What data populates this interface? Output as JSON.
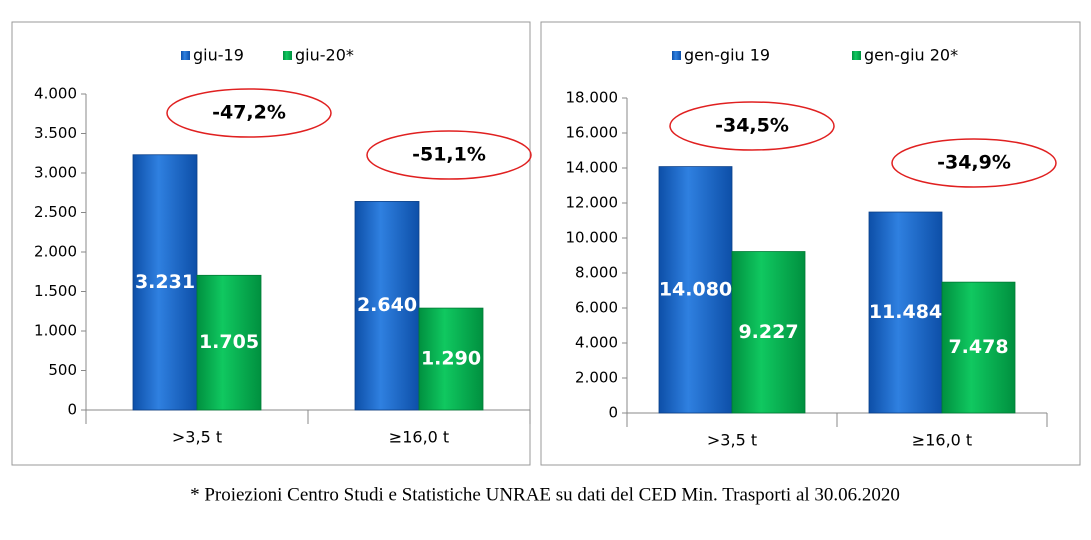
{
  "chart_data": [
    {
      "type": "bar",
      "categories": [
        ">3,5 t",
        "≥16,0 t"
      ],
      "series": [
        {
          "name": "giu-19",
          "color": "#1f6fd0",
          "values": [
            3231,
            2640
          ],
          "value_labels": [
            "3.231",
            "2.640"
          ]
        },
        {
          "name": "giu-20*",
          "color": "#00b050",
          "values": [
            1705,
            1290
          ],
          "value_labels": [
            "1.705",
            "1.290"
          ]
        }
      ],
      "annotations": [
        "-47,2%",
        "-51,1%"
      ],
      "ylim": [
        0,
        4000
      ],
      "yticks": [
        0,
        500,
        {
          "value": 1000,
          "label": "1.000"
        },
        {
          "value": 1500,
          "label": "1.500"
        },
        {
          "value": 2000,
          "label": "2.000"
        },
        {
          "value": 2500,
          "label": "2.500"
        },
        {
          "value": 3000,
          "label": "3.000"
        },
        {
          "value": 3500,
          "label": "3.500"
        },
        {
          "value": 4000,
          "label": "4.000"
        }
      ],
      "legend": "top"
    },
    {
      "type": "bar",
      "categories": [
        ">3,5 t",
        "≥16,0 t"
      ],
      "series": [
        {
          "name": "gen-giu 19",
          "color": "#1f6fd0",
          "values": [
            14080,
            11484
          ],
          "value_labels": [
            "14.080",
            "11.484"
          ]
        },
        {
          "name": "gen-giu 20*",
          "color": "#00b050",
          "values": [
            9227,
            7478
          ],
          "value_labels": [
            "9.227",
            "7.478"
          ]
        }
      ],
      "annotations": [
        "-34,5%",
        "-34,9%"
      ],
      "ylim": [
        0,
        18000
      ],
      "yticks": [
        0,
        {
          "value": 2000,
          "label": "2.000"
        },
        {
          "value": 4000,
          "label": "4.000"
        },
        {
          "value": 6000,
          "label": "6.000"
        },
        {
          "value": 8000,
          "label": "8.000"
        },
        {
          "value": 10000,
          "label": "10.000"
        },
        {
          "value": 12000,
          "label": "12.000"
        },
        {
          "value": 14000,
          "label": "14.000"
        },
        {
          "value": 16000,
          "label": "16.000"
        },
        {
          "value": 18000,
          "label": "18.000"
        }
      ],
      "legend": "top"
    }
  ],
  "footnote": "* Proiezioni Centro Studi e Statistiche UNRAE su dati del CED Min. Trasporti al 30.06.2020"
}
